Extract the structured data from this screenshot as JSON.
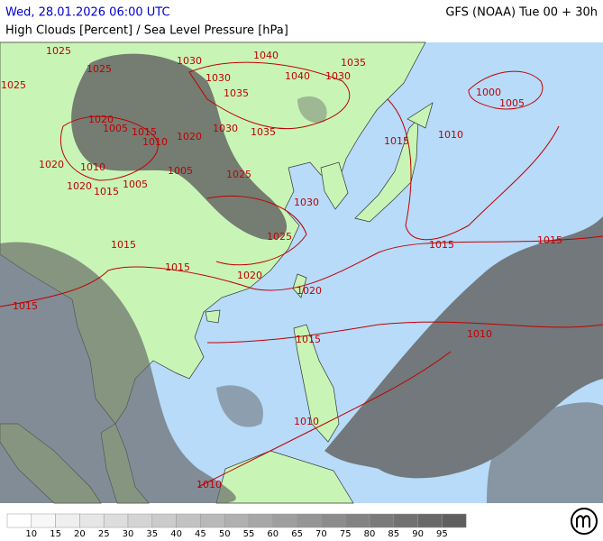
{
  "header": {
    "title": "Wed, 28.01.2026 06:00 UTC",
    "model": "GFS (NOAA) Tue 00 + 30h",
    "subtitle": "High Clouds [Percent] / Sea Level Pressure [hPa]"
  },
  "isobars": {
    "labels": [
      1025,
      1025,
      1025,
      1030,
      1040,
      1030,
      1040,
      1030,
      1035,
      1035,
      1000,
      1005,
      1020,
      1005,
      1015,
      1010,
      1020,
      1030,
      1035,
      1015,
      1010,
      1020,
      1010,
      1005,
      1025,
      1020,
      1015,
      1005,
      1030,
      1025,
      1015,
      1015,
      1015,
      1015,
      1020,
      1020,
      1015,
      1015,
      1010,
      1010,
      1010
    ]
  },
  "legend": {
    "labels": [
      10,
      15,
      20,
      25,
      30,
      35,
      40,
      45,
      50,
      55,
      60,
      65,
      70,
      75,
      80,
      85,
      90,
      95
    ],
    "colors": [
      "#ffffff",
      "#f7f7f7",
      "#efefef",
      "#e6e6e6",
      "#dddddd",
      "#d4d4d4",
      "#cbcbcb",
      "#c2c2c2",
      "#b9b9b9",
      "#b0b0b0",
      "#a7a7a7",
      "#9e9e9e",
      "#959595",
      "#8c8c8c",
      "#838383",
      "#7a7a7a",
      "#717171",
      "#686868",
      "#5f5f5f"
    ]
  }
}
